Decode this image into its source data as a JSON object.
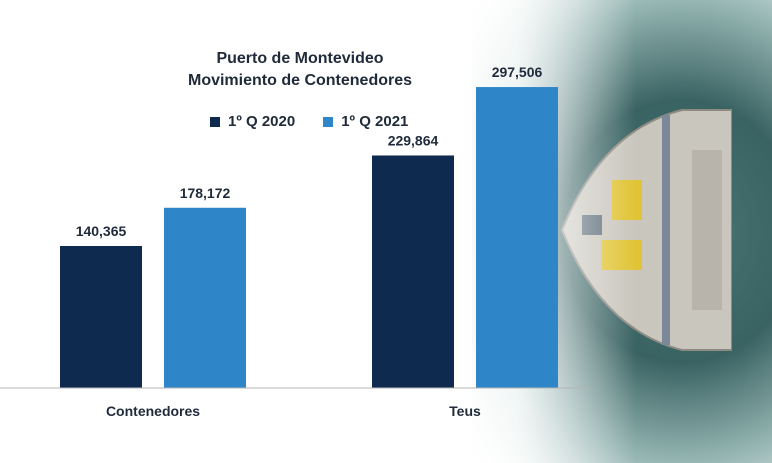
{
  "chart_data": {
    "type": "bar",
    "title_line1": "Puerto de Montevideo",
    "title_line2": "Movimiento de Contenedores",
    "categories": [
      "Contenedores",
      "Teus"
    ],
    "series": [
      {
        "name": "1º Q 2020",
        "values": [
          140365,
          229864
        ],
        "labels": [
          "140,365",
          "229,864"
        ],
        "color": "#0e2a4f"
      },
      {
        "name": "1º Q 2021",
        "values": [
          178172,
          297506
        ],
        "labels": [
          "178,172",
          "297,506"
        ],
        "color": "#2e86c8"
      }
    ],
    "ylim": [
      0,
      380000
    ],
    "grid": false,
    "legend_position": "top"
  }
}
